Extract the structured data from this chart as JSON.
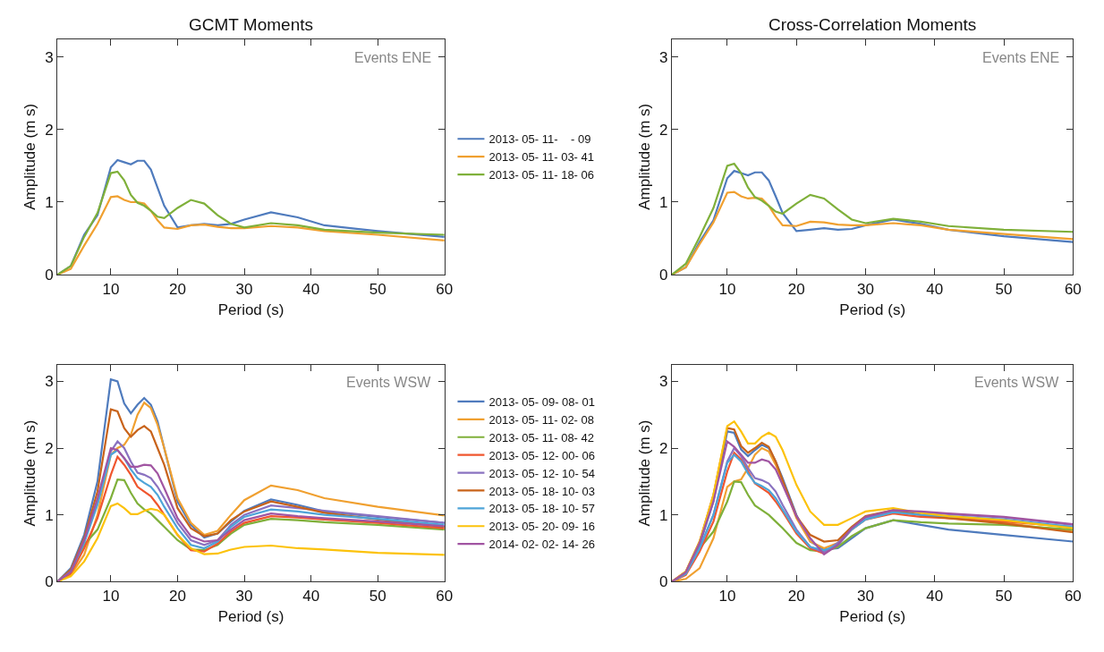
{
  "chart_data": [
    {
      "type": "line",
      "title": "GCMT Moments",
      "xlabel": "Period (s)",
      "ylabel": "Amplitude (m s)",
      "annotations": [
        "Events ENE"
      ],
      "legend": "right",
      "grid": false,
      "xlim": [
        2,
        60
      ],
      "xticks": [
        10,
        20,
        30,
        40,
        50,
        60
      ],
      "ylim": [
        0,
        3.25
      ],
      "yticks": [
        0,
        1,
        2,
        3
      ],
      "x": [
        2,
        4,
        6,
        8,
        10,
        11,
        12,
        13,
        14,
        15,
        16,
        17,
        18,
        20,
        22,
        24,
        26,
        28,
        30,
        34,
        38,
        42,
        50,
        60
      ],
      "series": [
        {
          "name": "2013- 05- 11-    - 09",
          "color": "#4f7bbd",
          "values": [
            0,
            0.12,
            0.55,
            0.82,
            1.48,
            1.58,
            1.55,
            1.52,
            1.57,
            1.57,
            1.45,
            1.2,
            0.95,
            0.65,
            0.68,
            0.7,
            0.68,
            0.7,
            0.76,
            0.86,
            0.79,
            0.68,
            0.6,
            0.52
          ]
        },
        {
          "name": "2013- 05- 11- 03- 41",
          "color": "#f0a030",
          "values": [
            0,
            0.08,
            0.4,
            0.7,
            1.07,
            1.08,
            1.03,
            1.0,
            1.0,
            0.98,
            0.88,
            0.75,
            0.65,
            0.63,
            0.68,
            0.69,
            0.66,
            0.64,
            0.64,
            0.67,
            0.65,
            0.6,
            0.55,
            0.47
          ]
        },
        {
          "name": "2013- 05- 11- 18- 06",
          "color": "#7fb03a",
          "values": [
            0,
            0.12,
            0.52,
            0.85,
            1.4,
            1.42,
            1.3,
            1.1,
            0.99,
            0.95,
            0.88,
            0.8,
            0.78,
            0.92,
            1.03,
            0.98,
            0.82,
            0.7,
            0.65,
            0.71,
            0.68,
            0.62,
            0.58,
            0.55
          ]
        }
      ]
    },
    {
      "type": "line",
      "title": "Cross-Correlation Moments",
      "xlabel": "Period (s)",
      "ylabel": "Amplitude (m s)",
      "annotations": [
        "Events ENE"
      ],
      "legend": false,
      "grid": false,
      "xlim": [
        2,
        60
      ],
      "xticks": [
        10,
        20,
        30,
        40,
        50,
        60
      ],
      "ylim": [
        0,
        3.25
      ],
      "yticks": [
        0,
        1,
        2,
        3
      ],
      "x": [
        2,
        4,
        6,
        8,
        10,
        11,
        12,
        13,
        14,
        15,
        16,
        17,
        18,
        20,
        22,
        24,
        26,
        28,
        30,
        34,
        38,
        42,
        50,
        60
      ],
      "series": [
        {
          "color": "#4f7bbd",
          "values": [
            0,
            0.1,
            0.45,
            0.75,
            1.33,
            1.43,
            1.4,
            1.37,
            1.41,
            1.41,
            1.3,
            1.08,
            0.85,
            0.6,
            0.62,
            0.64,
            0.62,
            0.63,
            0.68,
            0.76,
            0.7,
            0.62,
            0.53,
            0.45
          ]
        },
        {
          "color": "#f0a030",
          "values": [
            0,
            0.1,
            0.42,
            0.72,
            1.13,
            1.14,
            1.08,
            1.05,
            1.06,
            1.05,
            0.95,
            0.8,
            0.68,
            0.67,
            0.73,
            0.72,
            0.69,
            0.68,
            0.68,
            0.71,
            0.68,
            0.62,
            0.56,
            0.49
          ]
        },
        {
          "color": "#7fb03a",
          "values": [
            0,
            0.15,
            0.52,
            0.92,
            1.5,
            1.53,
            1.4,
            1.2,
            1.07,
            1.02,
            0.95,
            0.87,
            0.84,
            0.98,
            1.1,
            1.05,
            0.9,
            0.76,
            0.71,
            0.77,
            0.73,
            0.67,
            0.62,
            0.59
          ]
        }
      ]
    },
    {
      "type": "line",
      "xlabel": "Period (s)",
      "ylabel": "Amplitude (m s)",
      "annotations": [
        "Events WSW"
      ],
      "legend": "right",
      "grid": false,
      "xlim": [
        2,
        60
      ],
      "xticks": [
        10,
        20,
        30,
        40,
        50,
        60
      ],
      "ylim": [
        0,
        3.25
      ],
      "yticks": [
        0,
        1,
        2,
        3
      ],
      "x": [
        2,
        4,
        6,
        8,
        10,
        11,
        12,
        13,
        14,
        15,
        16,
        17,
        18,
        20,
        22,
        24,
        26,
        28,
        30,
        34,
        38,
        42,
        50,
        60
      ],
      "series": [
        {
          "name": "2013- 05- 09- 08- 01",
          "color": "#4f7bbd",
          "values": [
            0,
            0.2,
            0.7,
            1.5,
            3.03,
            3.0,
            2.67,
            2.52,
            2.65,
            2.75,
            2.65,
            2.4,
            2.0,
            1.2,
            0.85,
            0.66,
            0.72,
            0.9,
            1.06,
            1.23,
            1.15,
            1.05,
            0.97,
            0.88
          ]
        },
        {
          "name": "2013- 05- 11- 02- 08",
          "color": "#f0a030",
          "values": [
            0,
            0.1,
            0.4,
            1.0,
            1.9,
            2.0,
            2.05,
            2.2,
            2.5,
            2.68,
            2.6,
            2.35,
            2.0,
            1.25,
            0.88,
            0.7,
            0.76,
            1.0,
            1.22,
            1.44,
            1.37,
            1.25,
            1.12,
            0.99
          ]
        },
        {
          "name": "2013- 05- 11- 08- 42",
          "color": "#7fb03a",
          "values": [
            0,
            0.15,
            0.55,
            0.78,
            1.25,
            1.53,
            1.52,
            1.33,
            1.17,
            1.08,
            1.02,
            0.92,
            0.82,
            0.62,
            0.48,
            0.47,
            0.55,
            0.72,
            0.85,
            0.94,
            0.92,
            0.89,
            0.85,
            0.78
          ]
        },
        {
          "name": "2013- 05- 12- 00- 06",
          "color": "#f0562e",
          "values": [
            0,
            0.12,
            0.5,
            0.95,
            1.6,
            1.87,
            1.75,
            1.6,
            1.42,
            1.35,
            1.28,
            1.15,
            1.0,
            0.7,
            0.47,
            0.45,
            0.57,
            0.75,
            0.88,
            0.98,
            0.96,
            0.93,
            0.88,
            0.8
          ]
        },
        {
          "name": "2013- 05- 12- 10- 54",
          "color": "#8a72c0",
          "values": [
            0,
            0.15,
            0.6,
            1.2,
            1.95,
            2.1,
            2.0,
            1.8,
            1.63,
            1.6,
            1.55,
            1.42,
            1.25,
            0.88,
            0.62,
            0.55,
            0.62,
            0.85,
            1.0,
            1.14,
            1.1,
            1.06,
            0.98,
            0.88
          ]
        },
        {
          "name": "2013- 05- 18- 10- 03",
          "color": "#c8631a",
          "values": [
            0,
            0.18,
            0.65,
            1.35,
            2.58,
            2.55,
            2.3,
            2.17,
            2.27,
            2.33,
            2.25,
            2.0,
            1.75,
            1.1,
            0.8,
            0.68,
            0.72,
            0.92,
            1.05,
            1.2,
            1.12,
            1.03,
            0.93,
            0.82
          ]
        },
        {
          "name": "2013- 05- 18- 10- 57",
          "color": "#4ea4d8",
          "values": [
            0,
            0.15,
            0.58,
            1.15,
            1.9,
            1.97,
            1.85,
            1.68,
            1.55,
            1.48,
            1.42,
            1.3,
            1.12,
            0.8,
            0.55,
            0.5,
            0.6,
            0.82,
            0.97,
            1.08,
            1.05,
            1.0,
            0.94,
            0.85
          ]
        },
        {
          "name": "2013- 05- 20- 09- 16",
          "color": "#fcc20b",
          "values": [
            0,
            0.08,
            0.3,
            0.65,
            1.13,
            1.17,
            1.1,
            1.01,
            1.01,
            1.06,
            1.09,
            1.07,
            1.0,
            0.7,
            0.5,
            0.41,
            0.42,
            0.48,
            0.52,
            0.54,
            0.5,
            0.48,
            0.43,
            0.4
          ]
        },
        {
          "name": "2014- 02- 02- 14- 26",
          "color": "#a155a2",
          "values": [
            0,
            0.15,
            0.62,
            1.25,
            2.0,
            1.97,
            1.85,
            1.72,
            1.72,
            1.75,
            1.74,
            1.62,
            1.4,
            0.95,
            0.68,
            0.6,
            0.62,
            0.78,
            0.92,
            1.02,
            0.98,
            0.95,
            0.9,
            0.83
          ]
        }
      ]
    },
    {
      "type": "line",
      "xlabel": "Period (s)",
      "ylabel": "Amplitude (m s)",
      "annotations": [
        "Events WSW"
      ],
      "legend": false,
      "grid": false,
      "xlim": [
        2,
        60
      ],
      "xticks": [
        10,
        20,
        30,
        40,
        50,
        60
      ],
      "ylim": [
        0,
        3.25
      ],
      "yticks": [
        0,
        1,
        2,
        3
      ],
      "x": [
        2,
        4,
        6,
        8,
        10,
        11,
        12,
        13,
        14,
        15,
        16,
        17,
        18,
        20,
        22,
        24,
        26,
        28,
        30,
        34,
        38,
        42,
        50,
        60
      ],
      "series": [
        {
          "color": "#4f7bbd",
          "values": [
            0,
            0.12,
            0.55,
            1.2,
            2.25,
            2.23,
            1.98,
            1.88,
            1.97,
            2.05,
            2.0,
            1.8,
            1.55,
            1.0,
            0.6,
            0.48,
            0.5,
            0.65,
            0.8,
            0.92,
            0.85,
            0.78,
            0.7,
            0.6
          ]
        },
        {
          "color": "#f0a030",
          "values": [
            0,
            0.04,
            0.2,
            0.65,
            1.42,
            1.5,
            1.53,
            1.7,
            1.9,
            2.0,
            1.95,
            1.75,
            1.5,
            0.95,
            0.6,
            0.5,
            0.58,
            0.8,
            0.95,
            1.05,
            1.0,
            0.96,
            0.88,
            0.75
          ]
        },
        {
          "color": "#7fb03a",
          "values": [
            0,
            0.12,
            0.5,
            0.75,
            1.2,
            1.5,
            1.49,
            1.3,
            1.14,
            1.07,
            1.0,
            0.9,
            0.8,
            0.58,
            0.47,
            0.45,
            0.52,
            0.68,
            0.8,
            0.92,
            0.89,
            0.87,
            0.85,
            0.78
          ]
        },
        {
          "color": "#f0562e",
          "values": [
            0,
            0.1,
            0.45,
            0.9,
            1.65,
            1.93,
            1.83,
            1.65,
            1.47,
            1.4,
            1.33,
            1.2,
            1.05,
            0.72,
            0.5,
            0.42,
            0.55,
            0.78,
            0.93,
            1.02,
            0.97,
            0.95,
            0.9,
            0.82
          ]
        },
        {
          "color": "#8a72c0",
          "values": [
            0,
            0.12,
            0.5,
            1.0,
            1.8,
            2.0,
            1.88,
            1.7,
            1.55,
            1.52,
            1.47,
            1.35,
            1.15,
            0.78,
            0.52,
            0.44,
            0.58,
            0.8,
            0.95,
            1.06,
            1.04,
            1.01,
            0.96,
            0.85
          ]
        },
        {
          "color": "#c8631a",
          "values": [
            0,
            0.15,
            0.6,
            1.3,
            2.3,
            2.28,
            2.03,
            1.93,
            2.0,
            2.08,
            2.02,
            1.8,
            1.52,
            0.98,
            0.7,
            0.6,
            0.62,
            0.82,
            0.98,
            1.07,
            1.0,
            0.95,
            0.87,
            0.74
          ]
        },
        {
          "color": "#4ea4d8",
          "values": [
            0,
            0.12,
            0.5,
            1.0,
            1.78,
            1.9,
            1.8,
            1.62,
            1.48,
            1.43,
            1.37,
            1.25,
            1.08,
            0.75,
            0.52,
            0.47,
            0.55,
            0.78,
            0.93,
            1.04,
            1.0,
            0.98,
            0.93,
            0.82
          ]
        },
        {
          "color": "#fcc20b",
          "values": [
            0,
            0.15,
            0.6,
            1.3,
            2.33,
            2.4,
            2.25,
            2.07,
            2.07,
            2.17,
            2.23,
            2.17,
            1.97,
            1.45,
            1.05,
            0.85,
            0.85,
            0.95,
            1.05,
            1.1,
            1.03,
            0.98,
            0.92,
            0.8
          ]
        },
        {
          "color": "#a155a2",
          "values": [
            0,
            0.14,
            0.58,
            1.2,
            2.1,
            2.02,
            1.9,
            1.78,
            1.78,
            1.83,
            1.8,
            1.68,
            1.45,
            0.98,
            0.65,
            0.41,
            0.55,
            0.8,
            0.97,
            1.07,
            1.05,
            1.02,
            0.97,
            0.86
          ]
        }
      ]
    }
  ]
}
